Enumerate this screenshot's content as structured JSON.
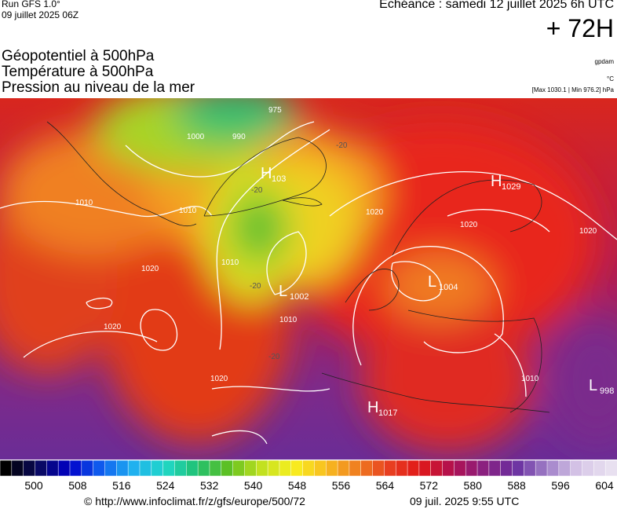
{
  "header": {
    "run": "Run GFS 1.0°",
    "run_date": "09 juillet 2025 06Z",
    "valid_time": "Echéance : samedi 12 juillet 2025 6h UTC",
    "lead": "+ 72H",
    "fields": [
      "Géopotentiel à 500hPa",
      "Température à 500hPa",
      "Pression au niveau de la mer"
    ],
    "units": [
      "gpdam",
      "°C"
    ],
    "range": "[Max 1030.1 | Min 976.2] hPa"
  },
  "map": {
    "centers": [
      {
        "letter": "H",
        "value": "103"
      },
      {
        "letter": "H",
        "value": "1029"
      },
      {
        "letter": "L",
        "value": "1002"
      },
      {
        "letter": "L",
        "value": "1004"
      },
      {
        "letter": "L",
        "value": "998"
      },
      {
        "letter": "H",
        "value": "1017"
      }
    ],
    "isobar_labels": [
      "975",
      "990",
      "1000",
      "1010",
      "1010",
      "1010",
      "1020",
      "1020",
      "1020",
      "1020",
      "1010",
      "1020",
      "1020",
      "1010"
    ],
    "temperature_labels": [
      "-20",
      "-20",
      "-20",
      "-20"
    ]
  },
  "colorbar": {
    "labels": [
      500,
      508,
      516,
      524,
      532,
      540,
      548,
      556,
      564,
      572,
      580,
      588,
      596,
      604
    ]
  },
  "footer": {
    "url": "© http://www.infoclimat.fr/z/gfs/europe/500/72",
    "timestamp": "09 juil. 2025  9:55 UTC"
  }
}
